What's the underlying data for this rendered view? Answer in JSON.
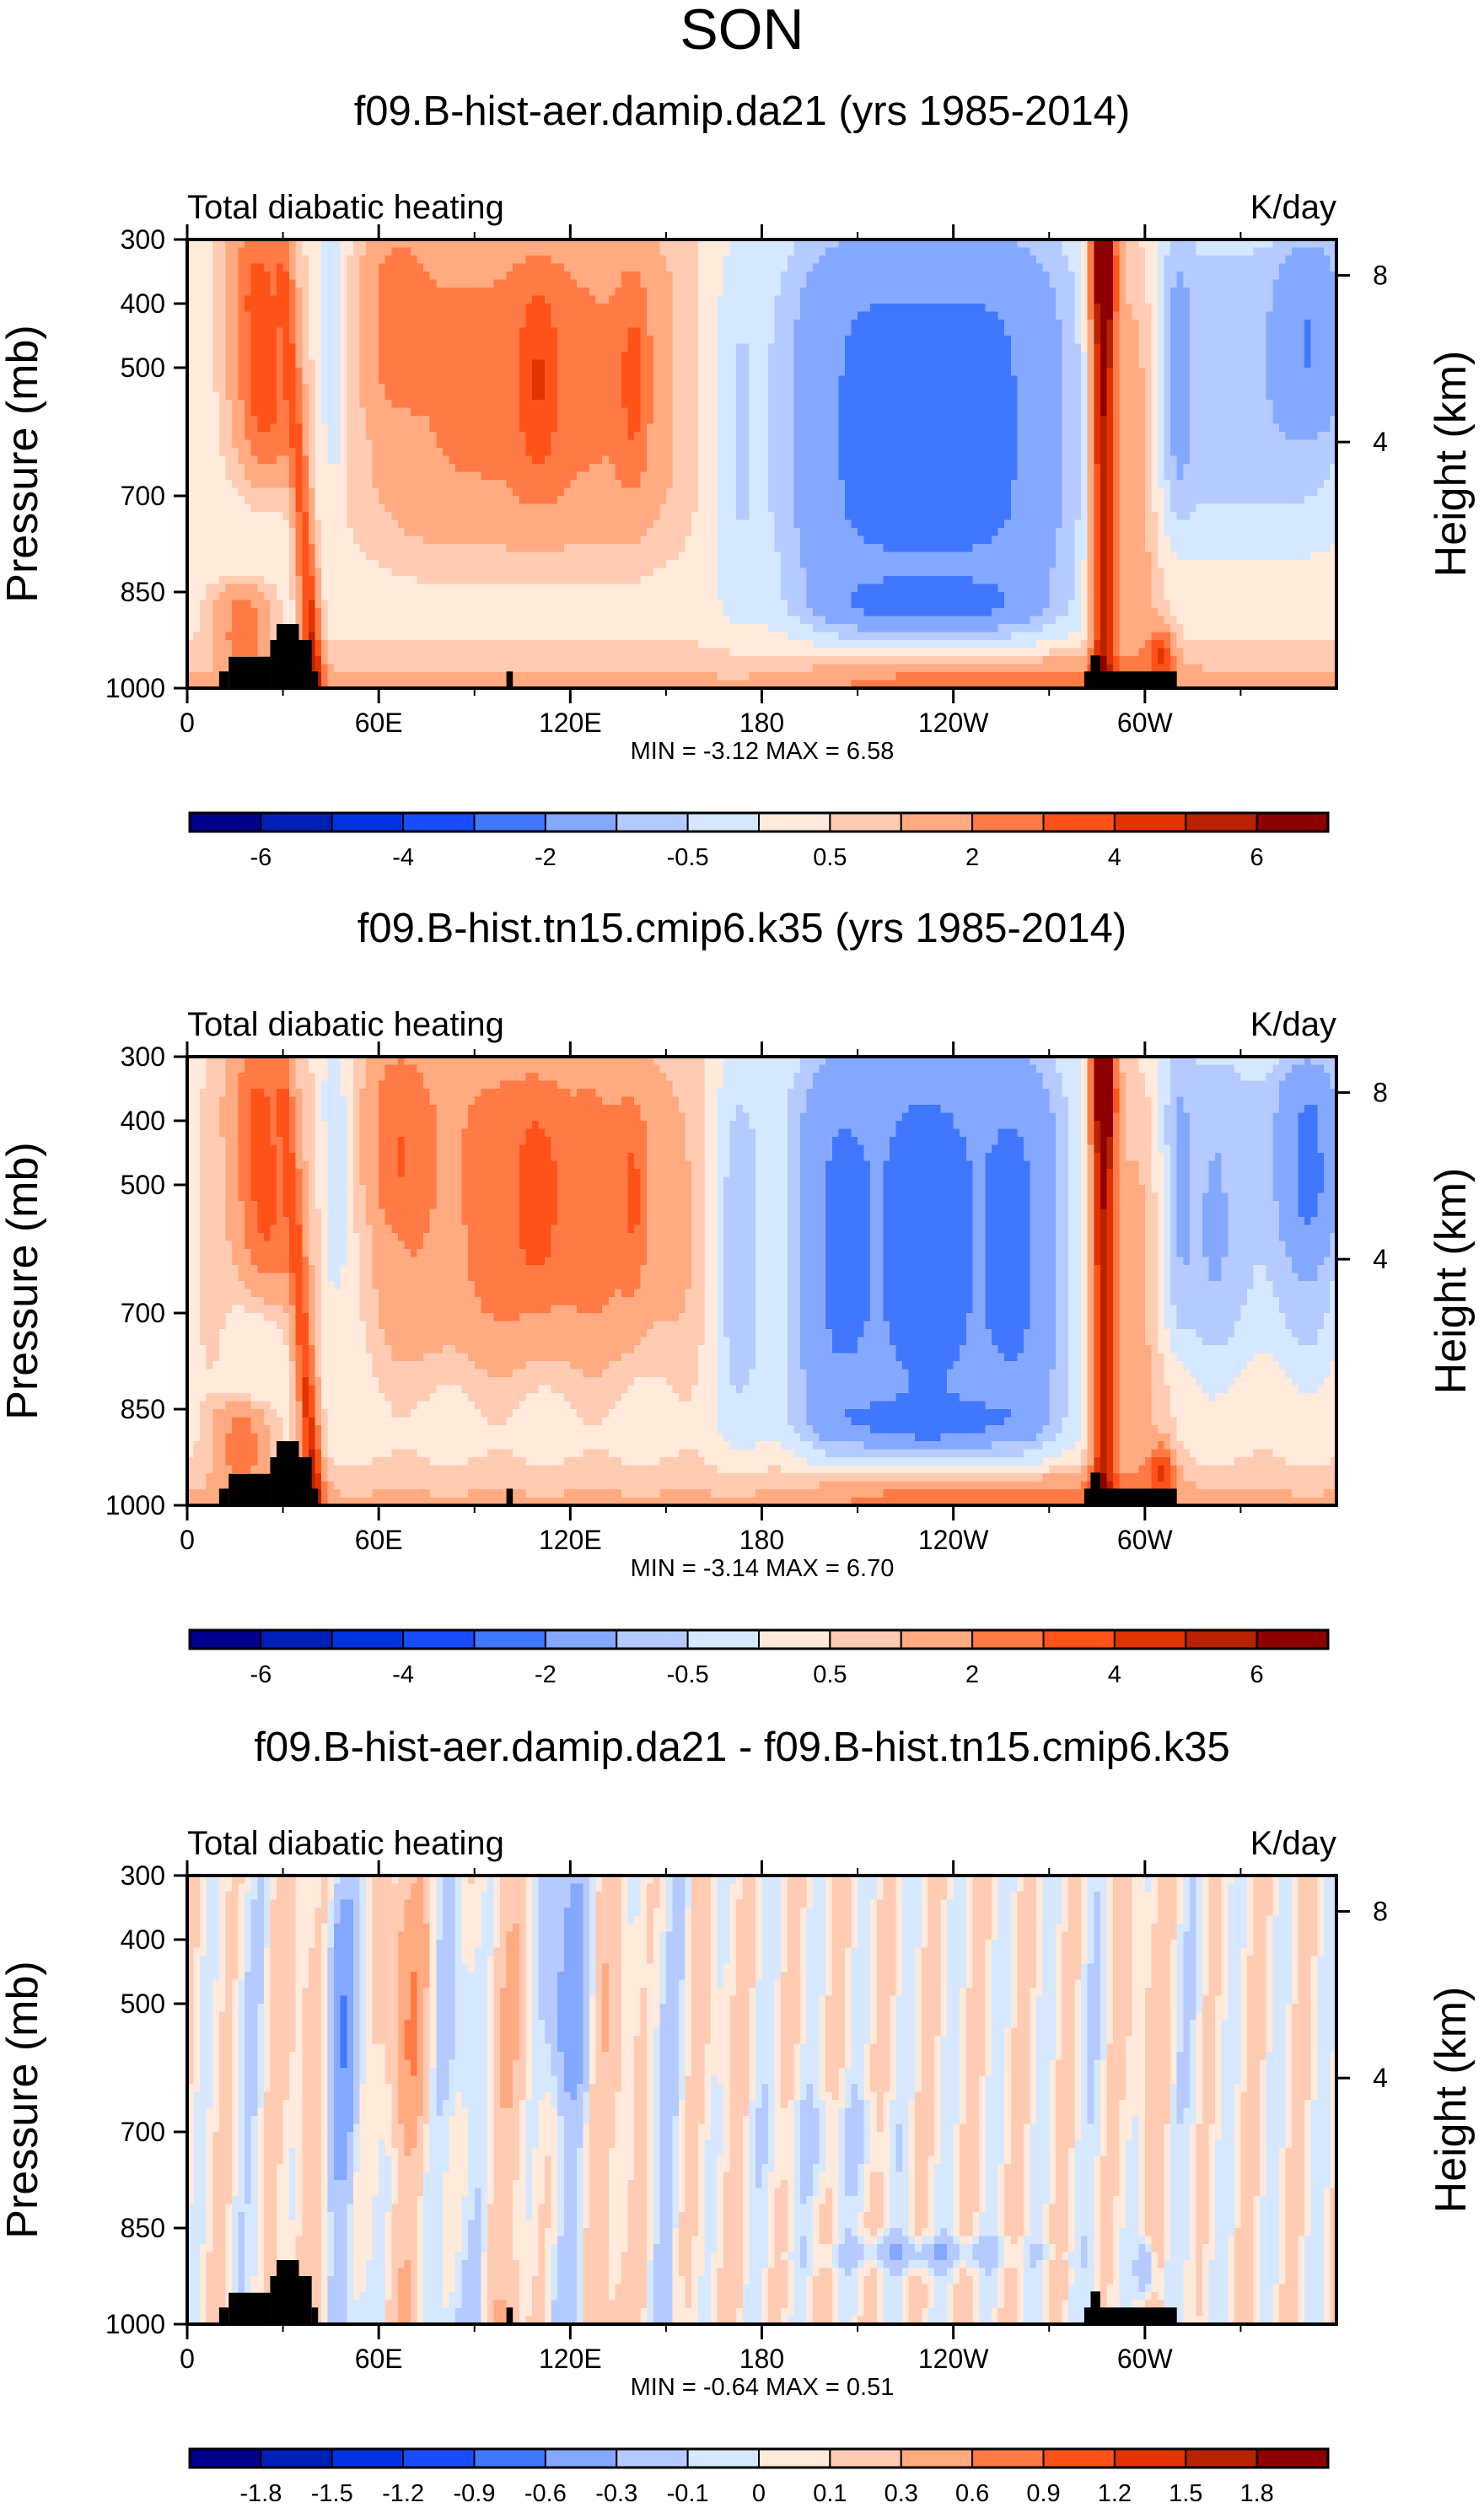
{
  "chart_data": {
    "type": "heatmap",
    "title": "SON",
    "colors": [
      "#00008c",
      "#0020b8",
      "#0033e0",
      "#1a4cff",
      "#4077ff",
      "#85a8ff",
      "#b5cbff",
      "#d6e8ff",
      "#ffeadb",
      "#ffcbb3",
      "#ffaa80",
      "#ff7a45",
      "#ff5219",
      "#e33300",
      "#b82200",
      "#8c0000"
    ],
    "x_ticks": [
      {
        "lon": 0,
        "label": "0"
      },
      {
        "lon": 60,
        "label": "60E"
      },
      {
        "lon": 120,
        "label": "120E"
      },
      {
        "lon": 180,
        "label": "180"
      },
      {
        "lon": 240,
        "label": "120W"
      },
      {
        "lon": 300,
        "label": "60W"
      }
    ],
    "x_minor_ticks": [
      30,
      90,
      150,
      210,
      270,
      330
    ],
    "xlim": [
      0,
      360
    ],
    "ylim": [
      300,
      1000
    ],
    "ylabel": "Pressure (mb)",
    "y_ticks": [
      300,
      400,
      500,
      700,
      850,
      1000
    ],
    "y2label": "Height (km)",
    "y2_ticks": [
      {
        "label": "8",
        "p": 356
      },
      {
        "label": "4",
        "p": 616
      }
    ],
    "topography": [
      [
        10,
        13,
        974
      ],
      [
        13,
        26,
        951
      ],
      [
        26,
        28,
        925
      ],
      [
        28,
        35,
        900
      ],
      [
        35,
        39,
        925
      ],
      [
        39,
        41,
        974
      ],
      [
        100,
        102,
        974
      ],
      [
        281,
        310,
        974
      ],
      [
        283,
        286,
        949
      ]
    ],
    "panels": [
      {
        "title": "f09.B-hist-aer.damip.da21 (yrs 1985-2014)",
        "left_label": "Total diabatic heating",
        "right_label": "K/day",
        "min_max": "MIN =  -3.12  MAX =   6.58",
        "levels": [
          -6,
          -5,
          -4,
          -3,
          -2,
          -1,
          -0.5,
          0,
          0.5,
          1,
          2,
          3,
          4,
          5,
          6
        ],
        "colorbar_labels": [
          "-6",
          "-4",
          "-2",
          "-0.5",
          "0.5",
          "2",
          "4",
          "6"
        ],
        "colorbar_label_levels": [
          0,
          2,
          4,
          6,
          8,
          10,
          12,
          14
        ],
        "min": -3.12,
        "max": 6.58
      },
      {
        "title": "f09.B-hist.tn15.cmip6.k35 (yrs 1985-2014)",
        "left_label": "Total diabatic heating",
        "right_label": "K/day",
        "min_max": "MIN =  -3.14  MAX =   6.70",
        "levels": [
          -6,
          -5,
          -4,
          -3,
          -2,
          -1,
          -0.5,
          0,
          0.5,
          1,
          2,
          3,
          4,
          5,
          6
        ],
        "colorbar_labels": [
          "-6",
          "-4",
          "-2",
          "-0.5",
          "0.5",
          "2",
          "4",
          "6"
        ],
        "colorbar_label_levels": [
          0,
          2,
          4,
          6,
          8,
          10,
          12,
          14
        ],
        "min": -3.14,
        "max": 6.7
      },
      {
        "title": "f09.B-hist-aer.damip.da21 - f09.B-hist.tn15.cmip6.k35",
        "left_label": "Total diabatic heating",
        "right_label": "K/day",
        "min_max": "MIN =  -0.64  MAX =   0.51",
        "levels": [
          -1.8,
          -1.5,
          -1.2,
          -0.9,
          -0.6,
          -0.3,
          -0.1,
          0,
          0.1,
          0.3,
          0.6,
          0.9,
          1.2,
          1.5,
          1.8
        ],
        "colorbar_labels": [
          "-1.8",
          "-1.5",
          "-1.2",
          "-0.9",
          "-0.6",
          "-0.3",
          "-0.1",
          "0",
          "0.1",
          "0.3",
          "0.6",
          "0.9",
          "1.2",
          "1.5",
          "1.8"
        ],
        "colorbar_label_levels": [
          0,
          1,
          2,
          3,
          4,
          5,
          6,
          7,
          8,
          9,
          10,
          11,
          12,
          13,
          14
        ],
        "min": -0.64,
        "max": 0.51
      }
    ]
  }
}
